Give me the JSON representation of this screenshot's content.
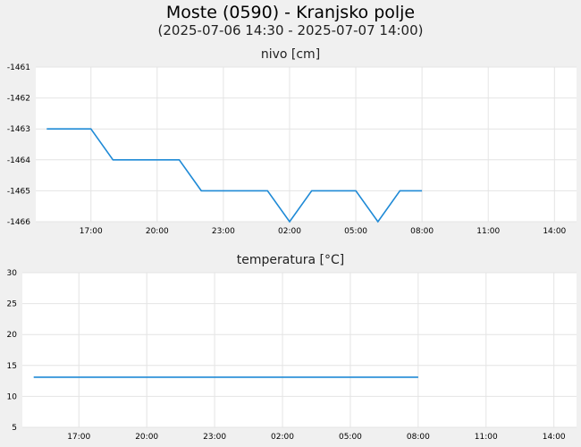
{
  "header": {
    "title": "Moste (0590) - Kranjsko polje",
    "subtitle": "(2025-07-06 14:30 - 2025-07-07 14:00)"
  },
  "chart_data": [
    {
      "type": "line",
      "title": "nivo [cm]",
      "xlabel": "",
      "ylabel": "",
      "ylim": [
        -1466,
        -1461
      ],
      "yticks": [
        -1461,
        -1462,
        -1463,
        -1464,
        -1465,
        -1466
      ],
      "xlim": [
        "2025-07-06 14:30",
        "2025-07-07 15:00"
      ],
      "xticks": [
        {
          "label": "17:00",
          "at": "2025-07-06 17:00"
        },
        {
          "label": "20:00",
          "at": "2025-07-06 20:00"
        },
        {
          "label": "23:00",
          "at": "2025-07-06 23:00"
        },
        {
          "label": "02:00",
          "at": "2025-07-07 02:00"
        },
        {
          "label": "05:00",
          "at": "2025-07-07 05:00"
        },
        {
          "label": "08:00",
          "at": "2025-07-07 08:00"
        },
        {
          "label": "11:00",
          "at": "2025-07-07 11:00"
        },
        {
          "label": "14:00",
          "at": "2025-07-07 14:00"
        }
      ],
      "grid": true,
      "color": "#1f8ad6",
      "series": [
        {
          "x": [
            "2025-07-06 15:00",
            "2025-07-06 17:00",
            "2025-07-06 18:00",
            "2025-07-06 21:00",
            "2025-07-06 22:00",
            "2025-07-07 01:00",
            "2025-07-07 02:00",
            "2025-07-07 03:00",
            "2025-07-07 05:00",
            "2025-07-07 06:00",
            "2025-07-07 07:00",
            "2025-07-07 08:00"
          ],
          "y": [
            -1463,
            -1463,
            -1464,
            -1464,
            -1465,
            -1465,
            -1466,
            -1465,
            -1465,
            -1466,
            -1465,
            -1465
          ]
        }
      ]
    },
    {
      "type": "line",
      "title": "temperatura [°C]",
      "xlabel": "",
      "ylabel": "",
      "ylim": [
        5,
        30
      ],
      "yticks": [
        30,
        25,
        20,
        15,
        10,
        5
      ],
      "xlim": [
        "2025-07-06 14:30",
        "2025-07-07 15:00"
      ],
      "xticks": [
        {
          "label": "17:00",
          "at": "2025-07-06 17:00"
        },
        {
          "label": "20:00",
          "at": "2025-07-06 20:00"
        },
        {
          "label": "23:00",
          "at": "2025-07-06 23:00"
        },
        {
          "label": "02:00",
          "at": "2025-07-07 02:00"
        },
        {
          "label": "05:00",
          "at": "2025-07-07 05:00"
        },
        {
          "label": "08:00",
          "at": "2025-07-07 08:00"
        },
        {
          "label": "11:00",
          "at": "2025-07-07 11:00"
        },
        {
          "label": "14:00",
          "at": "2025-07-07 14:00"
        }
      ],
      "grid": true,
      "color": "#1f8ad6",
      "series": [
        {
          "x": [
            "2025-07-06 15:00",
            "2025-07-07 08:00"
          ],
          "y": [
            13.1,
            13.1
          ]
        }
      ]
    }
  ]
}
